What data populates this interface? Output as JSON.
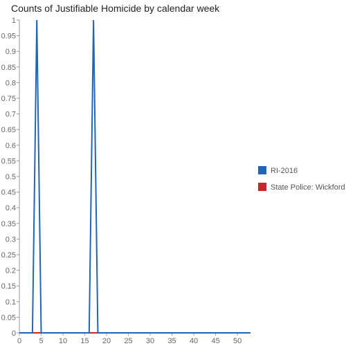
{
  "chart_data": {
    "type": "line",
    "title": "Counts of Justifiable Homicide by calendar week",
    "xlabel": "",
    "ylabel": "",
    "xlim": [
      0,
      53
    ],
    "ylim": [
      0,
      1
    ],
    "x_ticks": [
      0,
      5,
      10,
      15,
      20,
      25,
      30,
      35,
      40,
      45,
      50
    ],
    "y_ticks": [
      0,
      0.05,
      0.1,
      0.15,
      0.2,
      0.25,
      0.3,
      0.35,
      0.4,
      0.45,
      0.5,
      0.55,
      0.6,
      0.65,
      0.7,
      0.75,
      0.8,
      0.85,
      0.9,
      0.95,
      1
    ],
    "grid": false,
    "legend_position": "right",
    "series": [
      {
        "name": "RI-2016",
        "color": "#1f66b7",
        "x": [
          0,
          1,
          2,
          3,
          4,
          5,
          6,
          7,
          8,
          9,
          10,
          11,
          12,
          13,
          14,
          15,
          16,
          17,
          18,
          19,
          20,
          21,
          22,
          23,
          24,
          25,
          26,
          27,
          28,
          29,
          30,
          31,
          32,
          33,
          34,
          35,
          36,
          37,
          38,
          39,
          40,
          41,
          42,
          43,
          44,
          45,
          46,
          47,
          48,
          49,
          50,
          51,
          52,
          53
        ],
        "y": [
          0,
          0,
          0,
          0,
          1,
          0,
          0,
          0,
          0,
          0,
          0,
          0,
          0,
          0,
          0,
          0,
          0,
          1,
          0,
          0,
          0,
          0,
          0,
          0,
          0,
          0,
          0,
          0,
          0,
          0,
          0,
          0,
          0,
          0,
          0,
          0,
          0,
          0,
          0,
          0,
          0,
          0,
          0,
          0,
          0,
          0,
          0,
          0,
          0,
          0,
          0,
          0,
          0,
          0
        ]
      },
      {
        "name": "State Police: Wickford",
        "color": "#c62828",
        "x": [
          0,
          1,
          2,
          3,
          4,
          5,
          6,
          7,
          8,
          9,
          10,
          11,
          12,
          13,
          14,
          15,
          16,
          17,
          18,
          19,
          20,
          21,
          22,
          23,
          24,
          25,
          26,
          27,
          28,
          29,
          30,
          31,
          32,
          33,
          34,
          35,
          36,
          37,
          38,
          39,
          40,
          41,
          42,
          43,
          44,
          45,
          46,
          47,
          48,
          49,
          50,
          51,
          52,
          53
        ],
        "y": [
          0,
          0,
          0,
          0,
          0,
          0,
          0,
          0,
          0,
          0,
          0,
          0,
          0,
          0,
          0,
          0,
          0,
          0,
          0,
          0,
          0,
          0,
          0,
          0,
          0,
          0,
          0,
          0,
          0,
          0,
          0,
          0,
          0,
          0,
          0,
          0,
          0,
          0,
          0,
          0,
          0,
          0,
          0,
          0,
          0,
          0,
          0,
          0,
          0,
          0,
          0,
          0,
          0,
          0
        ]
      }
    ]
  }
}
